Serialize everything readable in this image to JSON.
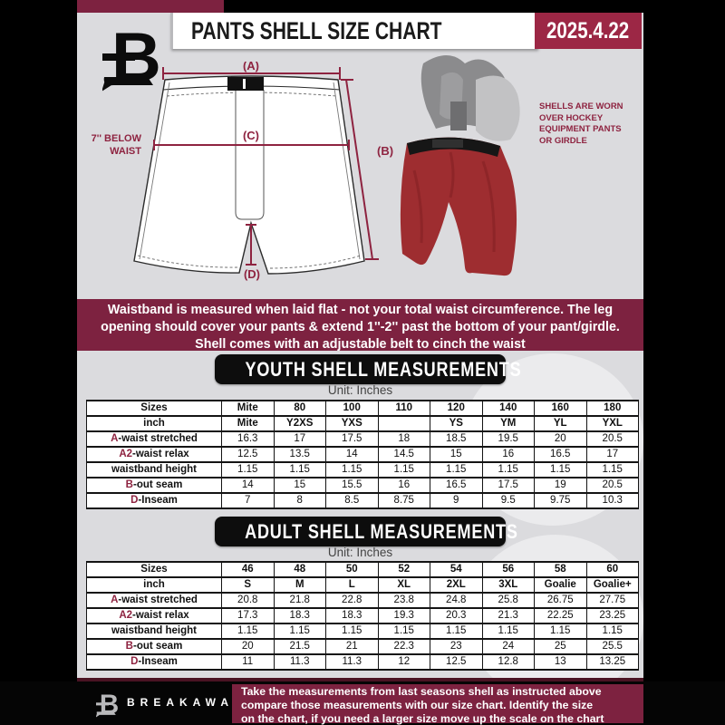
{
  "header": {
    "title": "PANTS SHELL SIZE CHART",
    "date": "2025.4.22"
  },
  "diagram": {
    "label_a": "(A)",
    "label_b": "(B)",
    "label_c": "(C)",
    "label_d": "(D)",
    "waist_note": "7'' BELOW\nWAIST",
    "photo_note": "SHELLS ARE WORN\nOVER HOCKEY\nEQUIPMENT PANTS\nOR GIRDLE"
  },
  "banner": {
    "text": "Waistband is measured when laid flat - not your total waist circumference. The leg\nopening should cover your pants & extend 1''-2'' past the bottom of your pant/girdle.\nShell comes with an adjustable belt to cinch the waist"
  },
  "youth": {
    "title": "YOUTH SHELL MEASUREMENTS",
    "unit": "Unit: Inches",
    "rows": [
      {
        "accent": "",
        "label": "Sizes",
        "bold": true,
        "values": [
          "Mite",
          "80",
          "100",
          "110",
          "120",
          "140",
          "160",
          "180"
        ]
      },
      {
        "accent": "",
        "label": "inch",
        "bold": true,
        "values": [
          "Mite",
          "Y2XS",
          "YXS",
          "",
          "YS",
          "YM",
          "YL",
          "YXL"
        ]
      },
      {
        "accent": "A",
        "label": "-waist stretched",
        "bold": false,
        "values": [
          "16.3",
          "17",
          "17.5",
          "18",
          "18.5",
          "19.5",
          "20",
          "20.5"
        ]
      },
      {
        "accent": "A2",
        "label": "-waist relax",
        "bold": false,
        "values": [
          "12.5",
          "13.5",
          "14",
          "14.5",
          "15",
          "16",
          "16.5",
          "17"
        ]
      },
      {
        "accent": "",
        "label": "waistband height",
        "bold": false,
        "values": [
          "1.15",
          "1.15",
          "1.15",
          "1.15",
          "1.15",
          "1.15",
          "1.15",
          "1.15"
        ]
      },
      {
        "accent": "B",
        "label": "-out seam",
        "bold": false,
        "values": [
          "14",
          "15",
          "15.5",
          "16",
          "16.5",
          "17.5",
          "19",
          "20.5"
        ]
      },
      {
        "accent": "D",
        "label": "-Inseam",
        "bold": false,
        "values": [
          "7",
          "8",
          "8.5",
          "8.75",
          "9",
          "9.5",
          "9.75",
          "10.3"
        ]
      }
    ]
  },
  "adult": {
    "title": "ADULT SHELL MEASUREMENTS",
    "unit": "Unit: Inches",
    "rows": [
      {
        "accent": "",
        "label": "Sizes",
        "bold": true,
        "values": [
          "46",
          "48",
          "50",
          "52",
          "54",
          "56",
          "58",
          "60"
        ]
      },
      {
        "accent": "",
        "label": "inch",
        "bold": true,
        "values": [
          "S",
          "M",
          "L",
          "XL",
          "2XL",
          "3XL",
          "Goalie",
          "Goalie+"
        ]
      },
      {
        "accent": "A",
        "label": "-waist stretched",
        "bold": false,
        "values": [
          "20.8",
          "21.8",
          "22.8",
          "23.8",
          "24.8",
          "25.8",
          "26.75",
          "27.75"
        ]
      },
      {
        "accent": "A2",
        "label": "-waist relax",
        "bold": false,
        "values": [
          "17.3",
          "18.3",
          "18.3",
          "19.3",
          "20.3",
          "21.3",
          "22.25",
          "23.25"
        ]
      },
      {
        "accent": "",
        "label": "waistband height",
        "bold": false,
        "values": [
          "1.15",
          "1.15",
          "1.15",
          "1.15",
          "1.15",
          "1.15",
          "1.15",
          "1.15"
        ]
      },
      {
        "accent": "B",
        "label": "-out seam",
        "bold": false,
        "values": [
          "20",
          "21.5",
          "21",
          "22.3",
          "23",
          "24",
          "25",
          "25.5"
        ]
      },
      {
        "accent": "D",
        "label": "-Inseam",
        "bold": false,
        "values": [
          "11",
          "11.3",
          "11.3",
          "12",
          "12.5",
          "12.8",
          "13",
          "13.25"
        ]
      }
    ]
  },
  "footer": {
    "brand": "BREAKAWAY",
    "note": "Take the measurements from last seasons shell as instructed above\ncompare those measurements  with our size chart. Identify the size\non the chart, if you need a larger size move up the scale on the chart"
  },
  "colors": {
    "maroon_banner": "#7d2240",
    "date_box": "#9c2745",
    "accent_letter": "#8e2340",
    "page_background": "#dbdbde",
    "section_box": "#0d0d0d",
    "shell_red": "#9e2d30"
  },
  "watermark": "3"
}
